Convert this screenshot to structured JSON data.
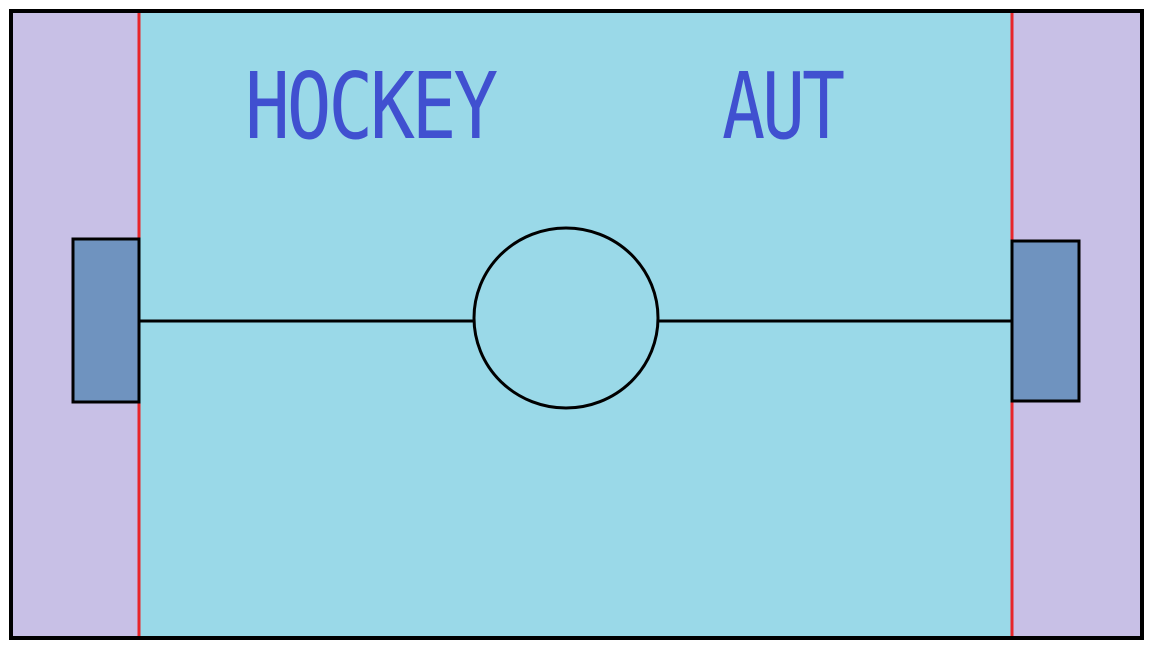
{
  "game": {
    "title": "HOCKEY",
    "subtitle": "AUT"
  },
  "colors": {
    "ice": "#9AD9E8",
    "side_zone": "#C8C0E6",
    "goal_line": "#E8252A",
    "goal": "#6F93BF",
    "outline": "#000000",
    "title_text": "#4050D0"
  },
  "icons": {
    "left_goal": "left-goal-icon",
    "right_goal": "right-goal-icon",
    "center_circle": "center-circle-icon"
  }
}
